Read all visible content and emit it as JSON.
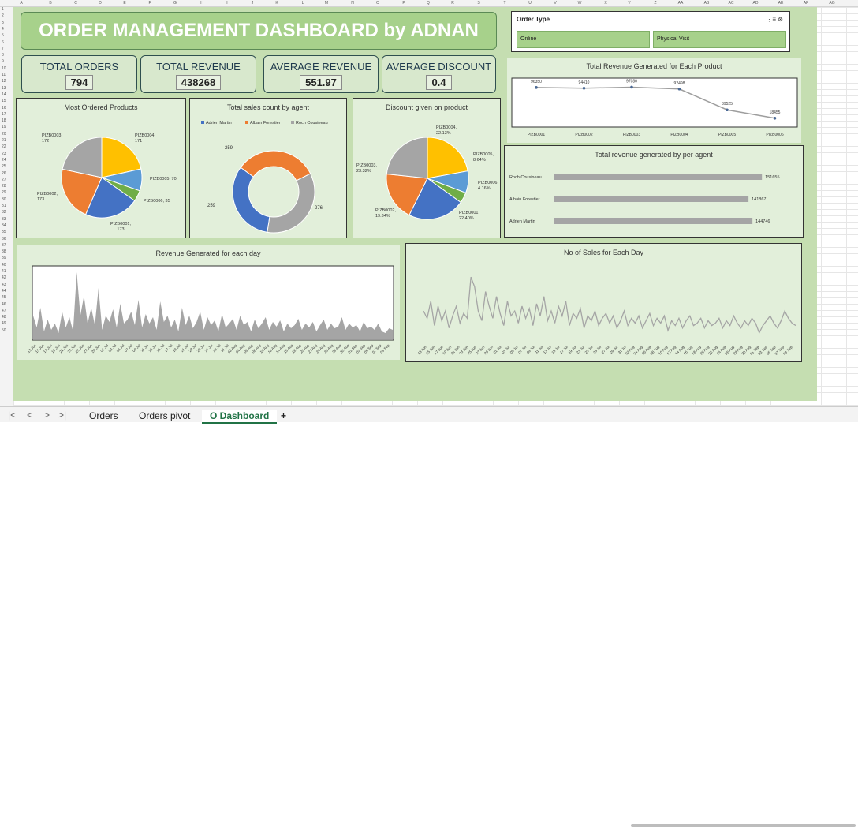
{
  "columns": [
    "A",
    "B",
    "C",
    "D",
    "E",
    "F",
    "G",
    "H",
    "I",
    "J",
    "K",
    "L",
    "M",
    "N",
    "O",
    "P",
    "Q",
    "R",
    "S",
    "T",
    "U",
    "V",
    "W",
    "X",
    "Y",
    "Z",
    "AA",
    "AB",
    "AC",
    "AD",
    "AE",
    "AF",
    "AG"
  ],
  "rows": [
    "1",
    "2",
    "3",
    "4",
    "5",
    "6",
    "7",
    "8",
    "9",
    "10",
    "11",
    "12",
    "13",
    "14",
    "15",
    "16",
    "17",
    "18",
    "19",
    "20",
    "21",
    "22",
    "23",
    "24",
    "25",
    "26",
    "27",
    "28",
    "29",
    "30",
    "31",
    "32",
    "33",
    "34",
    "35",
    "36",
    "37",
    "38",
    "39",
    "40",
    "41",
    "42",
    "43",
    "44",
    "45",
    "46",
    "47",
    "48",
    "49",
    "50"
  ],
  "title": "ORDER MANAGEMENT DASHBOARD by ADNAN",
  "kpis": [
    {
      "label": "TOTAL ORDERS",
      "value": "794"
    },
    {
      "label": "TOTAL REVENUE",
      "value": "438268"
    },
    {
      "label": "AVERAGE REVENUE",
      "value": "551.97"
    },
    {
      "label": "AVERAGE DISCOUNT",
      "value": "0.4"
    }
  ],
  "slicer": {
    "title": "Order Type",
    "options": [
      "Online",
      "Physical Visit"
    ]
  },
  "sheet_tabs": [
    "Orders",
    "Orders pivot",
    "O Dashboard"
  ],
  "add_sheet": "+",
  "colors": {
    "blue": "#4472c4",
    "orange": "#ed7d31",
    "gray": "#a5a5a5",
    "yellow": "#ffc000",
    "green": "#70ad47",
    "lightblue": "#5b9bd5",
    "panel": "#e2efda",
    "dash": "#c5deb1",
    "title": "#a7d18b"
  },
  "chart_data": [
    {
      "type": "pie",
      "title": "Most Ordered Products",
      "categories": [
        "PIZB0004",
        "PIZB0005",
        "PIZB0006",
        "PIZB0001",
        "PIZB0002",
        "PIZB0003"
      ],
      "values": [
        171,
        70,
        35,
        173,
        173,
        172
      ],
      "labels": [
        "PIZB0004,\n171",
        "PIZB0005, 70",
        "PIZB0006, 35",
        "PIZB0001,\n173",
        "PIZB0002,\n173",
        "PIZB0003,\n172"
      ]
    },
    {
      "type": "pie",
      "subtype": "doughnut",
      "title": "Total sales count by agent",
      "categories": [
        "Adrien Martin",
        "Albain Forestier",
        "Roch Cousineau"
      ],
      "values": [
        259,
        259,
        276
      ],
      "legend": "top"
    },
    {
      "type": "pie",
      "title": "Discount given on product",
      "categories": [
        "PIZB0004",
        "PIZB0005",
        "PIZB0006",
        "PIZB0001",
        "PIZB0002",
        "PIZB0003"
      ],
      "values": [
        22.13,
        8.64,
        4.16,
        22.4,
        19.34,
        23.32
      ],
      "labels": [
        "PIZB0004,\n22.13%",
        "PIZB0005,\n8.64%",
        "PIZB0006,\n4.16%",
        "PIZB0001,\n22.40%",
        "PIZB0002,\n19.34%",
        "PIZB0003,\n23.32%"
      ]
    },
    {
      "type": "line",
      "title": "Total Revenue Generated for Each Product",
      "categories": [
        "PIZB0001",
        "PIZB0002",
        "PIZB0003",
        "PIZB0004",
        "PIZB0005",
        "PIZB0006"
      ],
      "values": [
        96350,
        94410,
        97030,
        92498,
        39525,
        18455
      ]
    },
    {
      "type": "bar",
      "orientation": "horizontal",
      "title": "Total revenue generated by per agent",
      "categories": [
        "Roch Cousineau",
        "Albain Forestier",
        "Adrien Martin"
      ],
      "values": [
        151655,
        141867,
        144746
      ]
    },
    {
      "type": "area",
      "title": "Revenue Generated for each day",
      "x_labels": [
        "13 Jun",
        "15 Jun",
        "17 Jun",
        "19 Jun",
        "21 Jun",
        "23 Jun",
        "25 Jun",
        "27 Jun",
        "29 Jun",
        "01 Jul",
        "03 Jul",
        "05 Jul",
        "07 Jul",
        "09 Jul",
        "11 Jul",
        "13 Jul",
        "15 Jul",
        "17 Jul",
        "19 Jul",
        "21 Jul",
        "23 Jul",
        "25 Jul",
        "27 Jul",
        "29 Jul",
        "31 Jul",
        "02 Aug",
        "04 Aug",
        "06 Aug",
        "08 Aug",
        "10 Aug",
        "12 Aug",
        "14 Aug",
        "16 Aug",
        "18 Aug",
        "20 Aug",
        "22 Aug",
        "24 Aug",
        "26 Aug",
        "28 Aug",
        "30 Aug",
        "01 Sep",
        "03 Sep",
        "05 Sep",
        "07 Sep",
        "09 Sep"
      ],
      "values": [
        30,
        15,
        40,
        10,
        25,
        12,
        20,
        8,
        35,
        15,
        28,
        10,
        85,
        30,
        55,
        20,
        40,
        18,
        65,
        12,
        30,
        22,
        38,
        15,
        45,
        20,
        25,
        35,
        18,
        50,
        15,
        32,
        20,
        28,
        12,
        48,
        22,
        30,
        15,
        25,
        10,
        40,
        18,
        30,
        14,
        22,
        35,
        12,
        28,
        18,
        24,
        10,
        32,
        15,
        20,
        26,
        12,
        30,
        18,
        22,
        10,
        25,
        14,
        20,
        28,
        12,
        22,
        16,
        24,
        10,
        20,
        14,
        18,
        26,
        12,
        20,
        15,
        22,
        10,
        18,
        25,
        12,
        20,
        14,
        16,
        28,
        12,
        20,
        15,
        18,
        10,
        22,
        14,
        16,
        12,
        20,
        10,
        8,
        14,
        12
      ]
    },
    {
      "type": "line",
      "title": "No of Sales for Each Day",
      "x_labels": [
        "13 Jun",
        "15 Jun",
        "17 Jun",
        "19 Jun",
        "21 Jun",
        "23 Jun",
        "25 Jun",
        "27 Jun",
        "29 Jun",
        "01 Jul",
        "03 Jul",
        "05 Jul",
        "07 Jul",
        "09 Jul",
        "11 Jul",
        "13 Jul",
        "15 Jul",
        "17 Jul",
        "19 Jul",
        "21 Jul",
        "23 Jul",
        "25 Jul",
        "27 Jul",
        "29 Jul",
        "31 Jul",
        "02 Aug",
        "04 Aug",
        "06 Aug",
        "08 Aug",
        "10 Aug",
        "12 Aug",
        "14 Aug",
        "16 Aug",
        "18 Aug",
        "20 Aug",
        "22 Aug",
        "24 Aug",
        "26 Aug",
        "28 Aug",
        "30 Aug",
        "01 Sep",
        "03 Sep",
        "05 Sep",
        "07 Sep",
        "09 Sep"
      ],
      "values": [
        12,
        9,
        16,
        6,
        14,
        8,
        12,
        5,
        10,
        14,
        7,
        11,
        9,
        26,
        22,
        12,
        8,
        20,
        14,
        9,
        18,
        11,
        6,
        16,
        10,
        12,
        7,
        14,
        9,
        13,
        6,
        15,
        10,
        18,
        8,
        12,
        7,
        14,
        10,
        16,
        6,
        11,
        9,
        13,
        5,
        10,
        8,
        12,
        6,
        9,
        11,
        7,
        10,
        5,
        8,
        12,
        6,
        9,
        7,
        10,
        5,
        8,
        11,
        6,
        9,
        7,
        10,
        4,
        8,
        6,
        9,
        5,
        8,
        10,
        6,
        7,
        9,
        5,
        8,
        6,
        7,
        9,
        5,
        8,
        6,
        10,
        7,
        5,
        8,
        6,
        9,
        7,
        3,
        6,
        8,
        10,
        7,
        5,
        8,
        12,
        9,
        7,
        6
      ]
    }
  ]
}
